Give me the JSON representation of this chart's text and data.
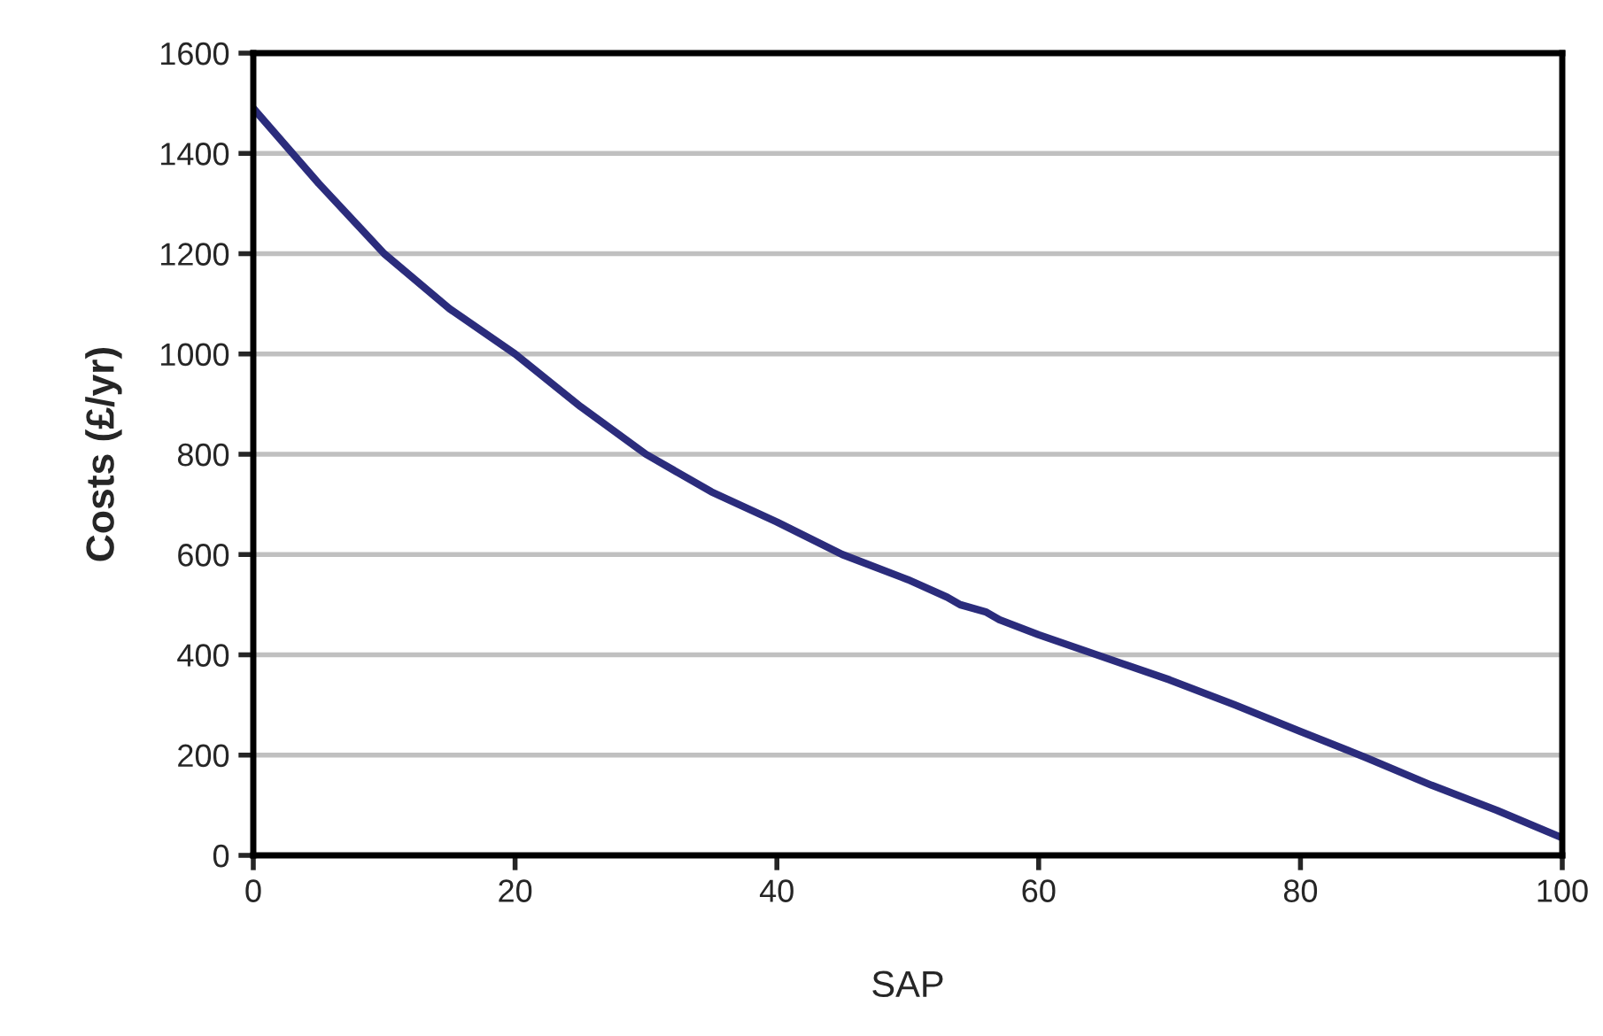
{
  "chart_data": {
    "type": "line",
    "xlabel": "SAP",
    "ylabel": "Costs (£/yr)",
    "x": [
      0,
      5,
      10,
      15,
      20,
      25,
      30,
      35,
      40,
      45,
      50,
      53,
      54,
      56,
      57,
      60,
      65,
      70,
      75,
      80,
      85,
      90,
      95,
      100
    ],
    "series": [
      {
        "color": "#2b2c7c",
        "values": [
          1490,
          1340,
          1200,
          1090,
          1000,
          895,
          800,
          725,
          665,
          600,
          550,
          515,
          500,
          485,
          470,
          440,
          395,
          350,
          300,
          247,
          195,
          140,
          90,
          35
        ]
      }
    ],
    "xlim": [
      0,
      100
    ],
    "xticks": [
      0,
      20,
      40,
      60,
      80,
      100
    ],
    "ylim": [
      0,
      1600
    ],
    "yticks": [
      0,
      200,
      400,
      600,
      800,
      1000,
      1200,
      1400,
      1600
    ],
    "grid": "y",
    "marker": "none",
    "line_style": "solid"
  }
}
